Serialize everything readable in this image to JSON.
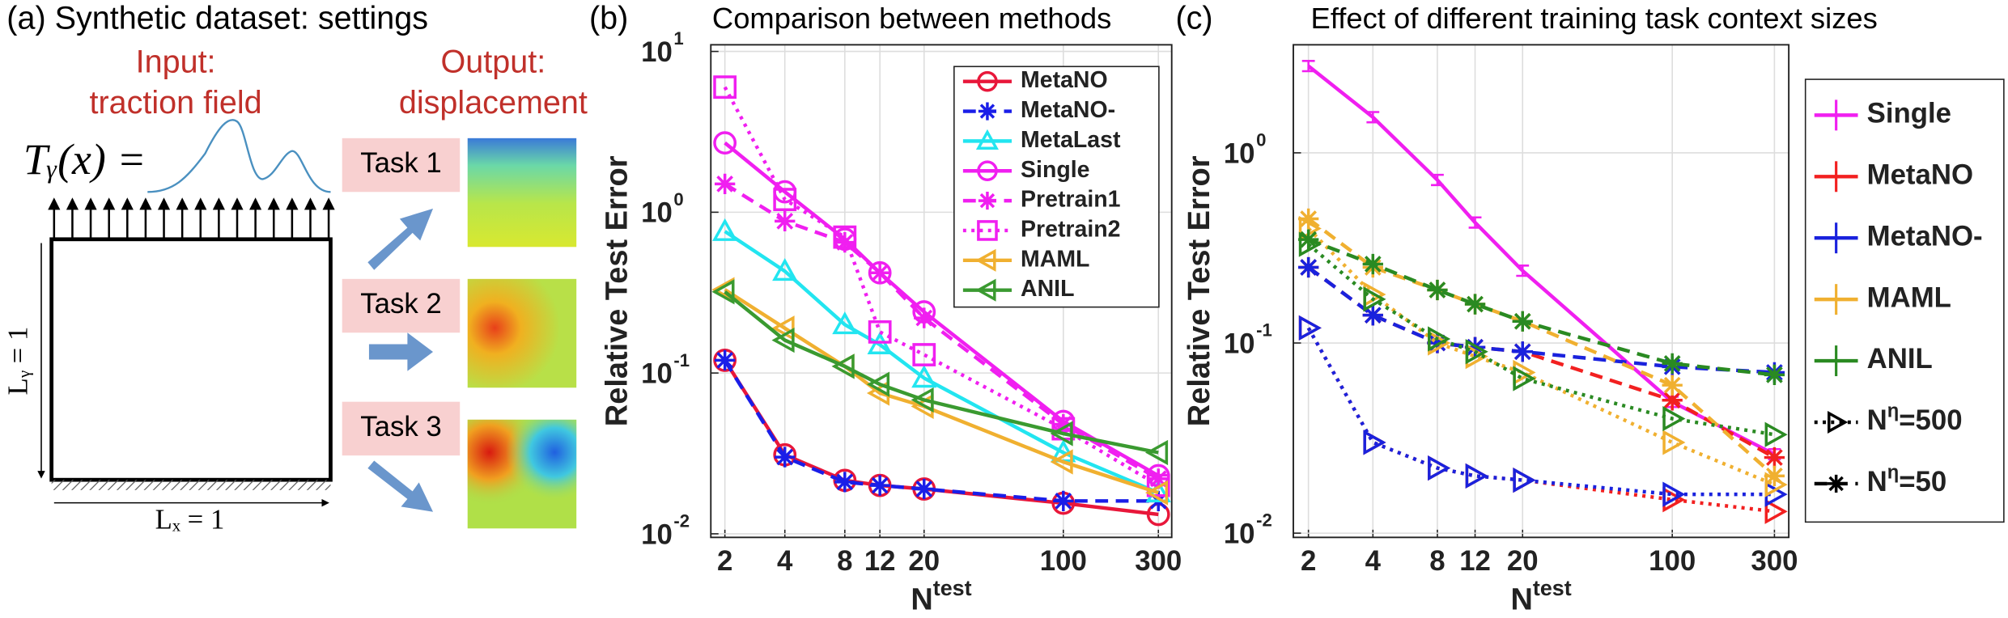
{
  "panel_a": {
    "title": "(a) Synthetic dataset: settings",
    "input": [
      "Input:",
      "traction field"
    ],
    "output": [
      "Output:",
      "displacement"
    ],
    "formula": "Tᵧ(x) =",
    "tasks": [
      "Task 1",
      "Task 2",
      "Task 3"
    ],
    "ly": "Lᵧ = 1",
    "lx": "Lₓ = 1"
  },
  "chart_data": [
    {
      "type": "line",
      "panel": "(b)",
      "title": "Comparison between methods",
      "x": [
        2,
        4,
        8,
        12,
        20,
        100,
        300
      ],
      "xlim": [
        1.7,
        350
      ],
      "xticks": [
        2,
        4,
        8,
        12,
        20,
        100,
        300
      ],
      "ylim": [
        0.0095,
        11
      ],
      "yticks": [
        {
          "value": 0.01,
          "label": "10",
          "exponent": "-2"
        },
        {
          "value": 0.1,
          "label": "10",
          "exponent": "-1"
        },
        {
          "value": 1,
          "label": "10",
          "exponent": "0"
        },
        {
          "value": 10,
          "label": "10",
          "exponent": "1"
        }
      ],
      "log_x": true,
      "log_y": true,
      "grid": true,
      "legend": "upper right",
      "y_label": "Relative Test Error",
      "x_label": {
        "base": "N",
        "sup": "test"
      },
      "series": [
        {
          "name": "MetaNO",
          "color": "#e8173a",
          "style": "solid",
          "marker": "circle",
          "values": [
            0.12,
            0.031,
            0.0215,
            0.02,
            0.019,
            0.0155,
            0.0132
          ]
        },
        {
          "name": "MetaNO-",
          "color": "#1a1ee8",
          "style": "dashed",
          "marker": "star",
          "values": [
            0.12,
            0.03,
            0.021,
            0.02,
            0.019,
            0.016,
            0.016
          ]
        },
        {
          "name": "MetaLast",
          "color": "#22e5f0",
          "style": "solid",
          "marker": "triangle-up",
          "values": [
            0.76,
            0.43,
            0.2,
            0.15,
            0.093,
            0.032,
            0.018
          ]
        },
        {
          "name": "Single",
          "color": "#f01ff0",
          "style": "solid",
          "marker": "circle",
          "values": [
            2.7,
            1.34,
            0.68,
            0.42,
            0.24,
            0.05,
            0.023
          ]
        },
        {
          "name": "Pretrain1",
          "color": "#f01ff0",
          "style": "dashed",
          "marker": "star",
          "values": [
            1.5,
            0.88,
            0.65,
            0.42,
            0.22,
            0.048,
            0.022
          ]
        },
        {
          "name": "Pretrain2",
          "color": "#f01ff0",
          "style": "dotted",
          "marker": "square",
          "values": [
            6,
            1.2,
            0.7,
            0.18,
            0.13,
            0.045,
            0.02
          ]
        },
        {
          "name": "MAML",
          "color": "#f0b030",
          "style": "solid",
          "marker": "triangle-left",
          "values": [
            0.33,
            0.19,
            0.11,
            0.075,
            0.062,
            0.028,
            0.018
          ]
        },
        {
          "name": "ANIL",
          "color": "#3a9a30",
          "style": "solid",
          "marker": "triangle-left",
          "values": [
            0.32,
            0.16,
            0.11,
            0.085,
            0.068,
            0.042,
            0.032
          ]
        }
      ]
    },
    {
      "type": "line",
      "panel": "(c)",
      "title": "Effect of different training task context sizes",
      "x": [
        2,
        4,
        8,
        12,
        20,
        100,
        300
      ],
      "xlim": [
        1.7,
        350
      ],
      "xticks": [
        2,
        4,
        8,
        12,
        20,
        100,
        300
      ],
      "ylim": [
        0.0095,
        3.7
      ],
      "yticks": [
        {
          "value": 0.01,
          "label": "10",
          "exponent": "-2"
        },
        {
          "value": 0.1,
          "label": "10",
          "exponent": "-1"
        },
        {
          "value": 1,
          "label": "10",
          "exponent": "0"
        }
      ],
      "log_x": true,
      "log_y": true,
      "grid": true,
      "legend": "outside right",
      "y_label": "Relative Test Error",
      "x_label": {
        "base": "N",
        "sup": "test"
      },
      "contexts": [
        {
          "name": [
            "N",
            "η",
            "=500"
          ],
          "style": "dotted",
          "marker": "triangle-right"
        },
        {
          "name": [
            "N",
            "η",
            "=50"
          ],
          "style": "dashed",
          "marker": "star"
        }
      ],
      "methods": [
        {
          "name": "Single",
          "color": "#f01ff0",
          "style": "solid",
          "values": [
            2.86,
            1.54,
            0.72,
            0.43,
            0.24,
            0.049,
            0.026
          ]
        },
        {
          "name": "MetaNO",
          "color": "#f22020",
          "series": [
            {
              "values": [
                0.12,
                0.03,
                0.022,
                0.02,
                0.019,
                0.015,
                0.013
              ]
            },
            {
              "values": [
                0.25,
                0.14,
                0.1,
                0.095,
                0.09,
                0.05,
                0.025
              ]
            }
          ]
        },
        {
          "name": "MetaNO-",
          "color": "#1a22dd",
          "series": [
            {
              "values": [
                0.12,
                0.03,
                0.022,
                0.02,
                0.019,
                0.016,
                0.016
              ]
            },
            {
              "values": [
                0.25,
                0.14,
                0.1,
                0.095,
                0.09,
                0.075,
                0.07
              ]
            }
          ]
        },
        {
          "name": "MAML",
          "color": "#f0b030",
          "series": [
            {
              "values": [
                0.4,
                0.18,
                0.1,
                0.085,
                0.07,
                0.03,
                0.018
              ]
            },
            {
              "values": [
                0.45,
                0.25,
                0.19,
                0.16,
                0.13,
                0.06,
                0.02
              ]
            }
          ]
        },
        {
          "name": "ANIL",
          "color": "#2a8a22",
          "series": [
            {
              "values": [
                0.33,
                0.17,
                0.105,
                0.09,
                0.065,
                0.04,
                0.033
              ]
            },
            {
              "values": [
                0.35,
                0.26,
                0.19,
                0.16,
                0.13,
                0.078,
                0.068
              ]
            }
          ]
        }
      ]
    }
  ]
}
